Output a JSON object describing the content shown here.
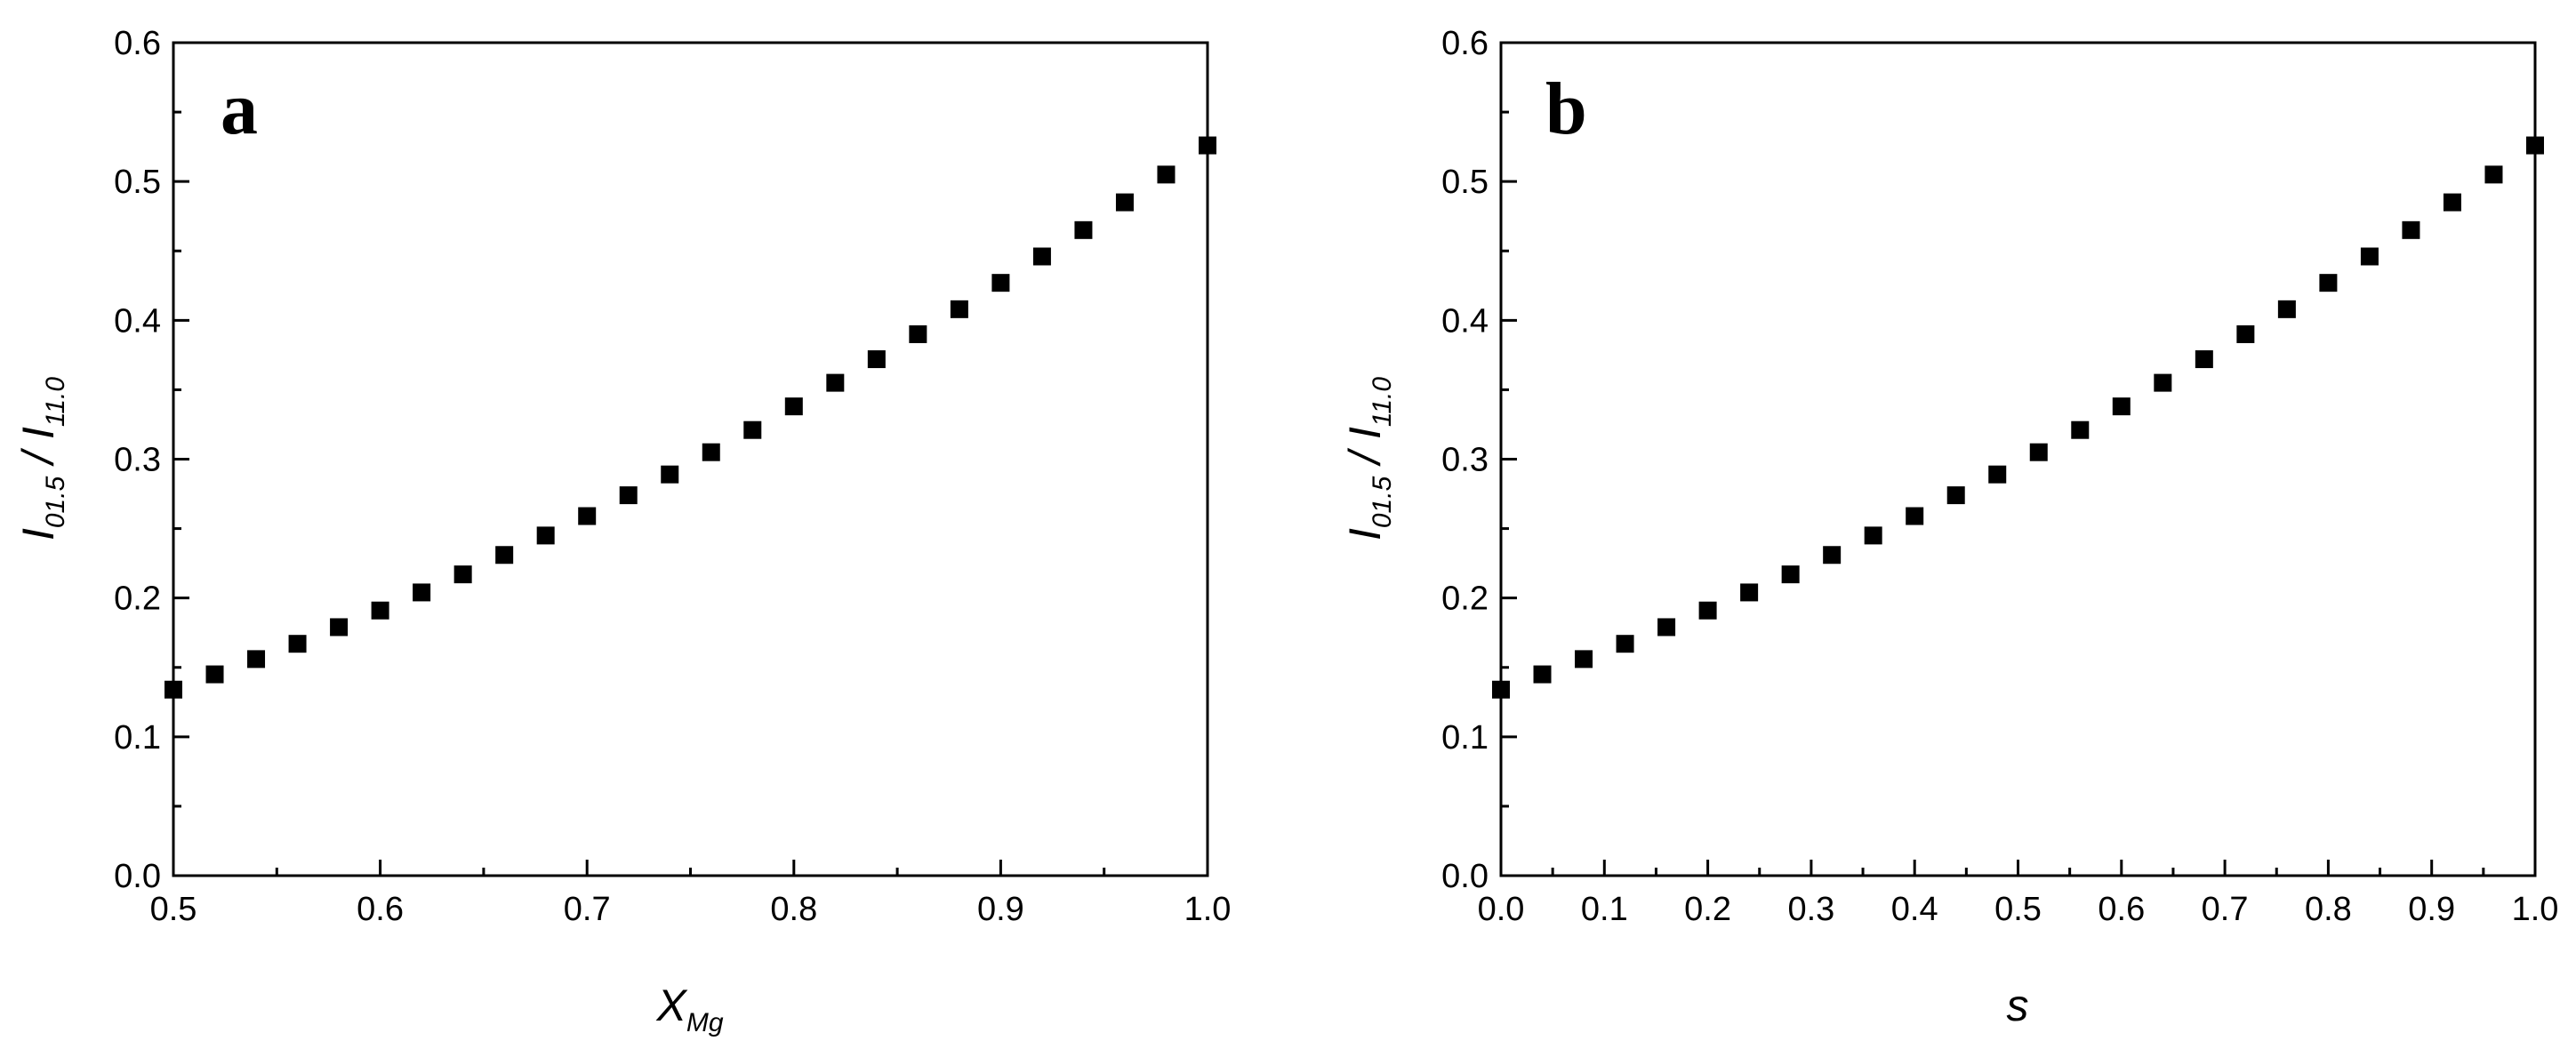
{
  "chart_data": [
    {
      "type": "scatter",
      "panel_label": "a",
      "ylabel": {
        "i1": "I",
        "s1": "01.5",
        "slash": " / ",
        "i2": "I",
        "s2": "11.0"
      },
      "xlabel": {
        "main": "X",
        "sub": "Mg"
      },
      "xlim": [
        0.5,
        1.0
      ],
      "ylim": [
        0.0,
        0.6
      ],
      "xticks": [
        "0.5",
        "0.6",
        "0.7",
        "0.8",
        "0.9",
        "1.0"
      ],
      "xtick_values": [
        0.5,
        0.6,
        0.7,
        0.8,
        0.9,
        1.0
      ],
      "yticks": [
        "0.0",
        "0.1",
        "0.2",
        "0.3",
        "0.4",
        "0.5",
        "0.6"
      ],
      "ytick_values": [
        0.0,
        0.1,
        0.2,
        0.3,
        0.4,
        0.5,
        0.6
      ],
      "grid": false,
      "marker": "square",
      "x": [
        0.5,
        0.52,
        0.54,
        0.56,
        0.58,
        0.6,
        0.62,
        0.64,
        0.66,
        0.68,
        0.7,
        0.72,
        0.74,
        0.76,
        0.78,
        0.8,
        0.82,
        0.84,
        0.86,
        0.88,
        0.9,
        0.92,
        0.94,
        0.96,
        0.98,
        1.0
      ],
      "y": [
        0.134,
        0.145,
        0.156,
        0.167,
        0.179,
        0.191,
        0.204,
        0.217,
        0.231,
        0.245,
        0.259,
        0.274,
        0.289,
        0.305,
        0.321,
        0.338,
        0.355,
        0.372,
        0.39,
        0.408,
        0.427,
        0.446,
        0.465,
        0.485,
        0.505,
        0.526
      ]
    },
    {
      "type": "scatter",
      "panel_label": "b",
      "ylabel": {
        "i1": "I",
        "s1": "01.5",
        "slash": " / ",
        "i2": "I",
        "s2": "11.0"
      },
      "xlabel": {
        "main": "s",
        "sub": ""
      },
      "xlim": [
        0.0,
        1.0
      ],
      "ylim": [
        0.0,
        0.6
      ],
      "xticks": [
        "0.0",
        "0.1",
        "0.2",
        "0.3",
        "0.4",
        "0.5",
        "0.6",
        "0.7",
        "0.8",
        "0.9",
        "1.0"
      ],
      "xtick_values": [
        0.0,
        0.1,
        0.2,
        0.3,
        0.4,
        0.5,
        0.6,
        0.7,
        0.8,
        0.9,
        1.0
      ],
      "yticks": [
        "0.0",
        "0.1",
        "0.2",
        "0.3",
        "0.4",
        "0.5",
        "0.6"
      ],
      "ytick_values": [
        0.0,
        0.1,
        0.2,
        0.3,
        0.4,
        0.5,
        0.6
      ],
      "grid": false,
      "marker": "square",
      "x": [
        0.0,
        0.04,
        0.08,
        0.12,
        0.16,
        0.2,
        0.24,
        0.28,
        0.32,
        0.36,
        0.4,
        0.44,
        0.48,
        0.52,
        0.56,
        0.6,
        0.64,
        0.68,
        0.72,
        0.76,
        0.8,
        0.84,
        0.88,
        0.92,
        0.96,
        1.0
      ],
      "y": [
        0.134,
        0.145,
        0.156,
        0.167,
        0.179,
        0.191,
        0.204,
        0.217,
        0.231,
        0.245,
        0.259,
        0.274,
        0.289,
        0.305,
        0.321,
        0.338,
        0.355,
        0.372,
        0.39,
        0.408,
        0.427,
        0.446,
        0.465,
        0.485,
        0.505,
        0.526
      ]
    }
  ]
}
